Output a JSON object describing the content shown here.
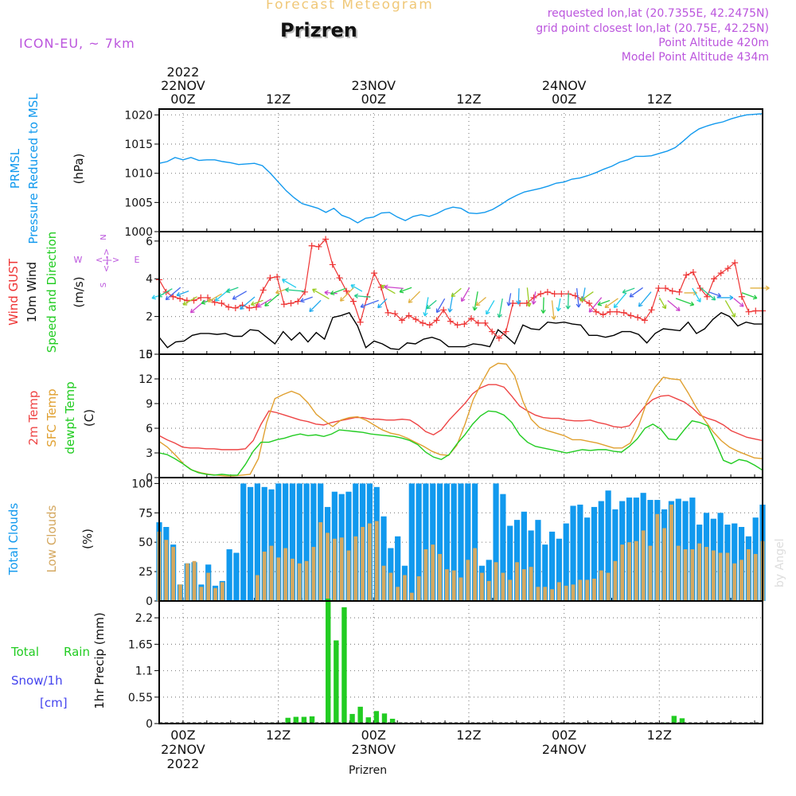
{
  "header": {
    "subtitle": "Forecast Meteogram",
    "title": "Prizren",
    "model": "ICON-EU, ~ 7km",
    "requested": "requested lon,lat (20.7355E, 42.2475N)",
    "gridpoint": "grid point closest lon,lat (20.75E, 42.25N)",
    "point_alt": "Point Altitude 420m",
    "model_alt": "Model Point Altitude 434m",
    "footer": "Prizren",
    "credit": "by Angel"
  },
  "colors": {
    "pressure": "#1199ee",
    "gust": "#ee3333",
    "wind": "#000000",
    "temp": "#ee4444",
    "sfc": "#e0a030",
    "dewpt": "#22cc22",
    "total_clouds": "#1199ee",
    "low_clouds": "#d4a860",
    "rain": "#22cc22",
    "snow": "#4444ee",
    "info": "#bb55dd"
  },
  "time_axis": {
    "top_labels": [
      {
        "pos": 3,
        "lines": [
          "2022",
          "22NOV",
          "00Z"
        ]
      },
      {
        "pos": 15,
        "lines": [
          "12Z"
        ]
      },
      {
        "pos": 27,
        "lines": [
          "23NOV",
          "00Z"
        ]
      },
      {
        "pos": 39,
        "lines": [
          "12Z"
        ]
      },
      {
        "pos": 51,
        "lines": [
          "24NOV",
          "00Z"
        ]
      },
      {
        "pos": 63,
        "lines": [
          "12Z"
        ]
      }
    ],
    "bottom_labels": [
      {
        "pos": 3,
        "lines": [
          "00Z",
          "22NOV",
          "2022"
        ]
      },
      {
        "pos": 15,
        "lines": [
          "12Z"
        ]
      },
      {
        "pos": 27,
        "lines": [
          "00Z",
          "23NOV"
        ]
      },
      {
        "pos": 39,
        "lines": [
          "12Z"
        ]
      },
      {
        "pos": 51,
        "lines": [
          "00Z",
          "24NOV"
        ]
      },
      {
        "pos": 63,
        "lines": [
          "12Z"
        ]
      }
    ]
  },
  "panels": {
    "pressure": {
      "labels": [
        "PRMSL",
        "Pressure Reduced to MSL"
      ],
      "unit": "(hPa)"
    },
    "wind": {
      "labels": [
        "Wind GUST",
        "10m Wind",
        "Speed and Direction"
      ],
      "unit": "(m/s)",
      "compass": {
        "n": "N",
        "s": "S",
        "w": "W",
        "e": "E",
        "arrow": "<-|->"
      }
    },
    "temp": {
      "labels": [
        "2m Temp",
        "SFC Temp",
        "dewpt Temp"
      ],
      "unit": "(C)"
    },
    "clouds": {
      "labels": [
        "Total Clouds",
        "Low Clouds"
      ],
      "unit": "(%)"
    },
    "precip": {
      "labels": [
        "Total",
        "Rain",
        "Snow/1h",
        "[cm]"
      ],
      "unit": "1hr Precip (mm)"
    }
  },
  "chart_data": [
    {
      "type": "line",
      "name": "PRMSL",
      "ylabel": "(hPa)",
      "ylim": [
        1000,
        1021
      ],
      "yticks": [
        1000,
        1005,
        1010,
        1015,
        1020
      ],
      "x_hours": [
        0,
        1,
        2,
        3,
        4,
        5,
        6,
        7,
        8,
        9,
        10,
        11,
        12,
        13,
        14,
        15,
        16,
        17,
        18,
        19,
        20,
        21,
        22,
        23,
        24,
        25,
        26,
        27,
        28,
        29,
        30,
        31,
        32,
        33,
        34,
        35,
        36,
        37,
        38,
        39,
        40,
        41,
        42,
        43,
        44,
        45,
        46,
        47,
        48,
        49,
        50,
        51,
        52,
        53,
        54,
        55,
        56,
        57,
        58,
        59,
        60,
        61,
        62,
        63,
        64,
        65,
        66,
        67,
        68,
        69,
        70,
        71,
        72,
        73,
        74,
        75,
        76
      ],
      "values": [
        1011.7,
        1012.0,
        1012.7,
        1012.3,
        1012.7,
        1012.2,
        1012.3,
        1012.3,
        1012.0,
        1011.8,
        1011.5,
        1011.6,
        1011.7,
        1011.3,
        1010.0,
        1008.5,
        1007.0,
        1005.8,
        1004.8,
        1004.4,
        1004.0,
        1003.3,
        1004.0,
        1002.8,
        1002.3,
        1001.5,
        1002.3,
        1002.5,
        1003.2,
        1003.3,
        1002.5,
        1001.9,
        1002.6,
        1002.9,
        1002.6,
        1003.1,
        1003.8,
        1004.2,
        1004.0,
        1003.2,
        1003.1,
        1003.3,
        1003.8,
        1004.6,
        1005.5,
        1006.2,
        1006.8,
        1007.1,
        1007.4,
        1007.8,
        1008.3,
        1008.5,
        1009.0,
        1009.2,
        1009.6,
        1010.1,
        1010.7,
        1011.2,
        1011.9,
        1012.3,
        1012.9,
        1012.9,
        1013.0,
        1013.4,
        1013.8,
        1014.4,
        1015.5,
        1016.7,
        1017.6,
        1018.1,
        1018.5,
        1018.8,
        1019.3,
        1019.7,
        1020.0,
        1020.1,
        1020.2
      ]
    },
    {
      "type": "line",
      "name": "Wind",
      "ylabel": "(m/s)",
      "ylim": [
        0,
        6.5
      ],
      "yticks": [
        0,
        2,
        4,
        6
      ],
      "series": [
        {
          "name": "Wind GUST",
          "values": [
            3.95,
            3.3,
            3.05,
            2.95,
            2.85,
            2.85,
            3.0,
            3.0,
            2.75,
            2.7,
            2.5,
            2.45,
            2.6,
            2.45,
            2.5,
            3.4,
            4.05,
            4.1,
            2.65,
            2.7,
            2.8,
            3.3,
            5.75,
            5.7,
            6.1,
            4.75,
            4.05,
            3.35,
            2.8,
            1.7,
            3.05,
            4.3,
            3.55,
            2.2,
            2.15,
            1.8,
            2.05,
            1.85,
            1.65,
            1.55,
            1.8,
            2.35,
            1.75,
            1.55,
            1.6,
            1.9,
            1.65,
            1.65,
            1.2,
            0.85,
            1.2,
            2.7,
            2.7,
            2.7,
            3.0,
            3.2,
            3.3,
            3.2,
            3.2,
            3.2,
            3.1,
            2.9,
            2.7,
            2.25,
            2.1,
            2.25,
            2.25,
            2.2,
            2.05,
            1.95,
            1.8,
            2.35,
            3.5,
            3.5,
            3.35,
            3.3,
            4.2,
            4.35,
            3.5,
            3.05,
            4.0,
            4.3,
            4.55,
            4.85,
            3.05,
            2.25,
            2.3,
            2.3
          ]
        },
        {
          "name": "10m Wind",
          "values": [
            0.9,
            0.35,
            0.65,
            0.7,
            1.0,
            1.1,
            1.1,
            1.05,
            1.1,
            0.95,
            0.95,
            1.3,
            1.25,
            0.9,
            0.55,
            1.2,
            0.75,
            1.15,
            0.65,
            1.15,
            0.8,
            1.95,
            2.05,
            2.2,
            1.5,
            0.35,
            0.7,
            0.55,
            0.3,
            0.25,
            0.6,
            0.55,
            0.8,
            0.9,
            0.75,
            0.4,
            0.4,
            0.4,
            0.55,
            0.5,
            0.4,
            1.3,
            0.95,
            0.55,
            1.55,
            1.35,
            1.3,
            1.7,
            1.65,
            1.7,
            1.6,
            1.55,
            1.0,
            1.0,
            0.9,
            1.0,
            1.2,
            1.2,
            1.05,
            0.6,
            1.1,
            1.35,
            1.3,
            1.25,
            1.7,
            1.1,
            1.35,
            1.85,
            2.2,
            2.0,
            1.5,
            1.7,
            1.6,
            1.6
          ]
        }
      ]
    },
    {
      "type": "line",
      "name": "Temperature",
      "ylabel": "(C)",
      "ylim": [
        0,
        15
      ],
      "yticks": [
        0,
        3,
        6,
        9,
        12,
        15
      ],
      "series": [
        {
          "name": "2m Temp",
          "values": [
            5.1,
            4.6,
            4.2,
            3.7,
            3.6,
            3.6,
            3.5,
            3.5,
            3.4,
            3.4,
            3.4,
            3.5,
            4.5,
            6.5,
            8.1,
            7.9,
            7.6,
            7.3,
            7.0,
            6.8,
            6.5,
            6.4,
            6.7,
            6.9,
            7.1,
            7.3,
            7.3,
            7.1,
            7.1,
            7.0,
            7.0,
            7.1,
            7.0,
            6.4,
            5.6,
            5.2,
            5.8,
            7.0,
            8.0,
            9.0,
            10.2,
            10.9,
            11.3,
            11.3,
            11.0,
            9.9,
            8.7,
            8.1,
            7.6,
            7.3,
            7.2,
            7.2,
            7.0,
            6.9,
            6.9,
            7.0,
            6.7,
            6.5,
            6.2,
            6.1,
            6.3,
            7.5,
            8.7,
            9.5,
            9.9,
            10.0,
            9.6,
            9.2,
            8.5,
            7.6,
            7.2,
            6.9,
            6.4,
            5.7,
            5.3,
            4.9,
            4.7,
            4.5
          ]
        },
        {
          "name": "SFC Temp",
          "values": [
            4.4,
            3.7,
            2.7,
            1.6,
            0.9,
            0.6,
            0.4,
            0.3,
            0.2,
            0.2,
            0.3,
            0.4,
            2.3,
            6.7,
            9.6,
            10.1,
            10.5,
            10.1,
            9.1,
            7.7,
            6.9,
            6.2,
            7.0,
            7.3,
            7.4,
            7.0,
            6.4,
            5.8,
            5.4,
            5.2,
            4.8,
            4.3,
            3.8,
            3.2,
            2.8,
            2.7,
            3.9,
            6.5,
            9.5,
            11.5,
            13.3,
            13.9,
            13.8,
            12.4,
            9.3,
            7.1,
            6.1,
            5.7,
            5.4,
            5.1,
            4.6,
            4.6,
            4.4,
            4.2,
            3.9,
            3.6,
            3.6,
            4.2,
            6.3,
            9.2,
            11.0,
            12.2,
            12.0,
            11.9,
            10.3,
            8.5,
            7.0,
            5.6,
            4.5,
            3.7,
            3.2,
            2.8,
            2.4,
            2.3
          ]
        },
        {
          "name": "dewpt Temp",
          "values": [
            3.0,
            2.8,
            2.3,
            1.7,
            1.0,
            0.6,
            0.4,
            0.3,
            0.4,
            0.3,
            0.3,
            1.6,
            3.2,
            4.3,
            4.3,
            4.6,
            4.8,
            5.1,
            5.3,
            5.1,
            5.2,
            5.0,
            5.3,
            5.8,
            5.7,
            5.6,
            5.5,
            5.3,
            5.2,
            5.1,
            5.0,
            4.8,
            4.5,
            4.0,
            3.1,
            2.5,
            2.2,
            2.8,
            4.1,
            5.2,
            6.5,
            7.5,
            8.1,
            8.0,
            7.6,
            6.7,
            5.2,
            4.3,
            3.8,
            3.6,
            3.4,
            3.2,
            3.0,
            3.2,
            3.4,
            3.3,
            3.4,
            3.4,
            3.2,
            3.1,
            3.8,
            4.7,
            6.0,
            6.5,
            5.9,
            4.7,
            4.6,
            5.8,
            6.9,
            6.7,
            6.3,
            4.3,
            2.1,
            1.7,
            2.2,
            2.0,
            1.5,
            0.9
          ]
        }
      ]
    },
    {
      "type": "bar",
      "name": "Clouds",
      "ylabel": "(%)",
      "ylim": [
        0,
        105
      ],
      "yticks": [
        0,
        25,
        50,
        75,
        100
      ],
      "series": [
        {
          "name": "Total Clouds",
          "values": [
            67,
            63,
            48,
            14,
            32,
            33,
            14,
            31,
            13,
            17,
            44,
            41,
            100,
            97,
            100,
            97,
            95,
            100,
            100,
            100,
            100,
            100,
            100,
            100,
            80,
            93,
            91,
            93,
            100,
            100,
            100,
            97,
            72,
            45,
            55,
            30,
            100,
            100,
            100,
            100,
            100,
            100,
            100,
            100,
            100,
            100,
            30,
            35,
            100,
            91,
            64,
            69,
            76,
            60,
            69,
            48,
            59,
            53,
            66,
            81,
            82,
            71,
            80,
            85,
            94,
            78,
            85,
            88,
            88,
            92,
            86,
            86,
            78,
            85,
            87,
            85,
            88,
            65,
            75,
            70,
            75,
            65,
            66,
            63,
            55,
            71,
            82
          ]
        },
        {
          "name": "Low Clouds",
          "values": [
            59,
            52,
            46,
            14,
            32,
            34,
            12,
            24,
            11,
            16,
            0,
            0,
            0,
            0,
            22,
            42,
            47,
            37,
            45,
            36,
            32,
            34,
            46,
            67,
            58,
            53,
            54,
            43,
            55,
            63,
            66,
            68,
            30,
            24,
            12,
            22,
            7,
            21,
            44,
            48,
            40,
            27,
            26,
            20,
            35,
            45,
            24,
            17,
            33,
            24,
            18,
            33,
            27,
            29,
            12,
            12,
            10,
            16,
            13,
            14,
            18,
            18,
            19,
            26,
            24,
            34,
            48,
            50,
            51,
            60,
            47,
            74,
            62,
            82,
            47,
            44,
            44,
            49,
            46,
            43,
            41,
            41,
            32,
            35,
            44,
            40,
            51
          ]
        }
      ]
    },
    {
      "type": "bar",
      "name": "Precipitation",
      "ylabel": "1hr Precip (mm)",
      "ylim": [
        0,
        2.55
      ],
      "yticks": [
        0,
        0.55,
        1.1,
        1.65,
        2.2
      ],
      "series": [
        {
          "name": "Total Rain",
          "values": [
            0,
            0,
            0,
            0,
            0,
            0,
            0,
            0,
            0,
            0,
            0,
            0,
            0,
            0,
            0.02,
            0.02,
            0.12,
            0.14,
            0.14,
            0.15,
            0,
            2.6,
            1.73,
            2.42,
            0.2,
            0.35,
            0.13,
            0.26,
            0.21,
            0.1,
            0.02,
            0,
            0,
            0,
            0,
            0,
            0,
            0,
            0,
            0,
            0,
            0,
            0,
            0,
            0,
            0,
            0,
            0,
            0,
            0,
            0,
            0,
            0,
            0,
            0,
            0,
            0,
            0,
            0,
            0,
            0,
            0,
            0,
            0.02,
            0.16,
            0.11,
            0,
            0,
            0,
            0,
            0,
            0,
            0,
            0,
            0,
            0
          ]
        }
      ]
    }
  ]
}
